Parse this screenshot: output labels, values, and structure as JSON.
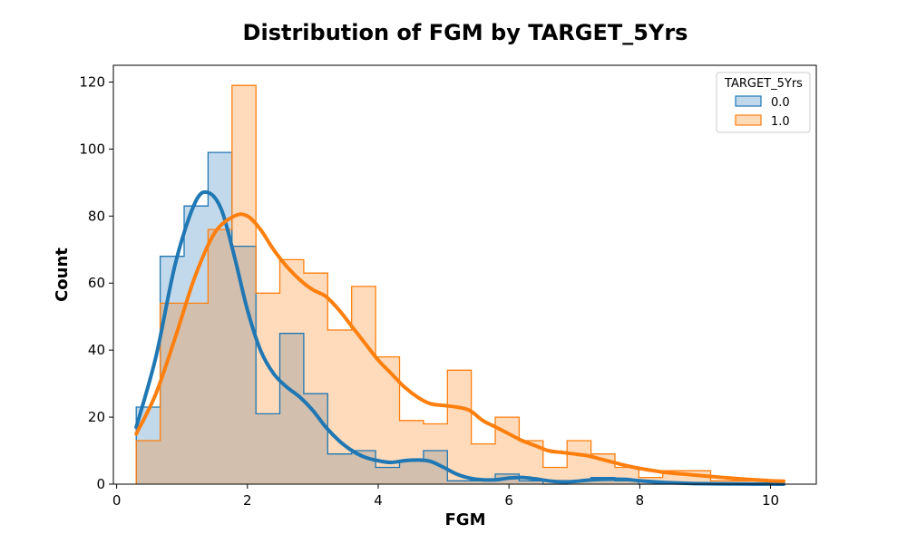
{
  "chart_data": {
    "type": "histogram",
    "title": "Distribution of FGM by TARGET_5Yrs",
    "xlabel": "FGM",
    "ylabel": "Count",
    "xlim": [
      -0.05,
      10.7
    ],
    "ylim": [
      0,
      125
    ],
    "xticks": [
      0,
      2,
      4,
      6,
      8,
      10
    ],
    "yticks": [
      0,
      20,
      40,
      60,
      80,
      100,
      120
    ],
    "bin_edges": [
      0.3,
      0.666,
      1.032,
      1.398,
      1.764,
      2.13,
      2.496,
      2.862,
      3.228,
      3.594,
      3.96,
      4.326,
      4.692,
      5.058,
      5.424,
      5.79,
      6.156,
      6.522,
      6.888,
      7.254,
      7.62,
      7.986,
      8.352,
      8.718,
      9.084,
      9.45,
      9.816,
      10.2
    ],
    "legend": {
      "title": "TARGET_5Yrs",
      "position": "top-right"
    },
    "series": [
      {
        "name": "0.0",
        "color": "#1f77b4",
        "fill": "#c1d8ea",
        "counts": [
          23,
          68,
          83,
          99,
          71,
          21,
          45,
          27,
          9,
          10,
          5,
          7,
          10,
          1,
          1,
          3,
          1,
          0,
          1,
          2,
          1,
          0,
          0,
          0,
          0,
          0,
          0
        ],
        "kde_x": [
          0.3,
          0.6,
          0.9,
          1.2,
          1.4,
          1.6,
          1.8,
          2.0,
          2.2,
          2.4,
          2.6,
          2.8,
          3.0,
          3.2,
          3.4,
          3.6,
          3.8,
          4.0,
          4.2,
          4.4,
          4.6,
          4.8,
          5.0,
          5.2,
          5.4,
          5.6,
          5.8,
          6.0,
          6.2,
          6.4,
          6.6,
          6.8,
          7.0,
          7.2,
          7.4,
          7.6,
          7.8,
          8.0,
          8.4,
          8.8,
          9.2,
          9.6,
          10.0,
          10.2
        ],
        "kde_y": [
          17,
          38,
          66,
          84,
          87,
          82,
          68,
          52,
          40,
          33,
          29,
          26,
          22,
          17,
          13,
          10,
          8,
          7,
          6.5,
          7,
          7.2,
          6.8,
          5,
          3,
          1.8,
          1.3,
          1.3,
          1.8,
          2,
          1.6,
          1,
          0.7,
          0.8,
          1.2,
          1.4,
          1.5,
          1.4,
          1,
          0.5,
          0.2,
          0.1,
          0.05,
          0.02,
          0
        ]
      },
      {
        "name": "1.0",
        "color": "#ff7f0e",
        "fill": "#ffdab9",
        "counts": [
          13,
          54,
          54,
          76,
          119,
          57,
          67,
          63,
          46,
          59,
          38,
          19,
          18,
          34,
          12,
          20,
          13,
          5,
          13,
          9,
          5,
          2,
          4,
          4,
          1,
          1,
          1
        ],
        "kde_x": [
          0.3,
          0.6,
          0.9,
          1.2,
          1.5,
          1.8,
          2.0,
          2.2,
          2.4,
          2.6,
          2.8,
          3.0,
          3.2,
          3.4,
          3.6,
          3.8,
          4.0,
          4.2,
          4.4,
          4.6,
          4.8,
          5.0,
          5.2,
          5.4,
          5.6,
          5.8,
          6.0,
          6.2,
          6.4,
          6.6,
          6.8,
          7.0,
          7.2,
          7.4,
          7.6,
          7.8,
          8.0,
          8.4,
          8.8,
          9.2,
          9.6,
          10.0,
          10.2
        ],
        "kde_y": [
          15,
          27,
          44,
          62,
          75,
          80,
          80,
          76,
          70,
          65,
          61,
          58,
          56,
          52,
          47,
          42,
          37,
          33,
          29,
          26,
          24,
          23.5,
          23,
          22,
          19,
          17,
          15,
          13,
          11.5,
          10,
          9.5,
          9,
          8.5,
          7.5,
          6.5,
          5.5,
          4.7,
          3.5,
          2.8,
          2.1,
          1.5,
          1.0,
          0.9
        ]
      }
    ]
  }
}
